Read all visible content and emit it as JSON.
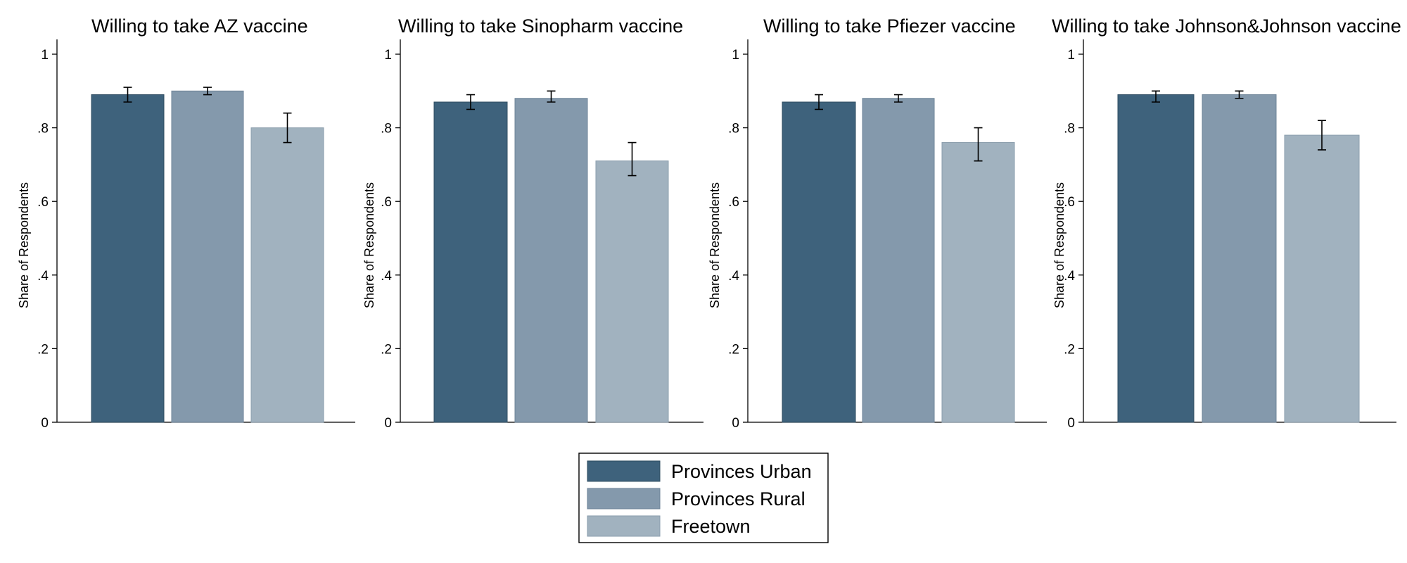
{
  "chart_data": [
    {
      "type": "bar",
      "title": "Willing to take AZ vaccine",
      "ylabel": "Share of Respondents",
      "ylim": [
        0,
        1
      ],
      "yticks": [
        0,
        0.2,
        0.4,
        0.6,
        0.8,
        1
      ],
      "ytick_labels": [
        "0",
        ".2",
        ".4",
        ".6",
        ".8",
        "1"
      ],
      "categories": [
        "Provinces Urban",
        "Provinces Rural",
        "Freetown"
      ],
      "values": [
        0.89,
        0.9,
        0.8
      ],
      "ci_low": [
        0.87,
        0.89,
        0.76
      ],
      "ci_high": [
        0.91,
        0.91,
        0.84
      ]
    },
    {
      "type": "bar",
      "title": "Willing to take Sinopharm vaccine",
      "ylabel": "Share of Respondents",
      "ylim": [
        0,
        1
      ],
      "yticks": [
        0,
        0.2,
        0.4,
        0.6,
        0.8,
        1
      ],
      "ytick_labels": [
        "0",
        ".2",
        ".4",
        ".6",
        ".8",
        "1"
      ],
      "categories": [
        "Provinces Urban",
        "Provinces Rural",
        "Freetown"
      ],
      "values": [
        0.87,
        0.88,
        0.71
      ],
      "ci_low": [
        0.85,
        0.87,
        0.67
      ],
      "ci_high": [
        0.89,
        0.9,
        0.76
      ]
    },
    {
      "type": "bar",
      "title": "Willing to take Pfiezer vaccine",
      "ylabel": "Share of Respondents",
      "ylim": [
        0,
        1
      ],
      "yticks": [
        0,
        0.2,
        0.4,
        0.6,
        0.8,
        1
      ],
      "ytick_labels": [
        "0",
        ".2",
        ".4",
        ".6",
        ".8",
        "1"
      ],
      "categories": [
        "Provinces Urban",
        "Provinces Rural",
        "Freetown"
      ],
      "values": [
        0.87,
        0.88,
        0.76
      ],
      "ci_low": [
        0.85,
        0.87,
        0.71
      ],
      "ci_high": [
        0.89,
        0.89,
        0.8
      ]
    },
    {
      "type": "bar",
      "title": "Willing to take Johnson&Johnson vaccine",
      "ylabel": "Share of Respondents",
      "ylim": [
        0,
        1
      ],
      "yticks": [
        0,
        0.2,
        0.4,
        0.6,
        0.8,
        1
      ],
      "ytick_labels": [
        "0",
        ".2",
        ".4",
        ".6",
        ".8",
        "1"
      ],
      "categories": [
        "Provinces Urban",
        "Provinces Rural",
        "Freetown"
      ],
      "values": [
        0.89,
        0.89,
        0.78
      ],
      "ci_low": [
        0.87,
        0.88,
        0.74
      ],
      "ci_high": [
        0.9,
        0.9,
        0.82
      ]
    }
  ],
  "legend": {
    "placement": "bottom-center",
    "items": [
      {
        "label": "Provinces Urban",
        "color": "#3e627c"
      },
      {
        "label": "Provinces Rural",
        "color": "#8499ac"
      },
      {
        "label": "Freetown",
        "color": "#a1b2bf"
      }
    ]
  },
  "colors": {
    "bar_edges": [
      "#2f4c61",
      "#6d8397",
      "#8a9dac"
    ],
    "axis": "#000000",
    "background": "#ffffff"
  }
}
